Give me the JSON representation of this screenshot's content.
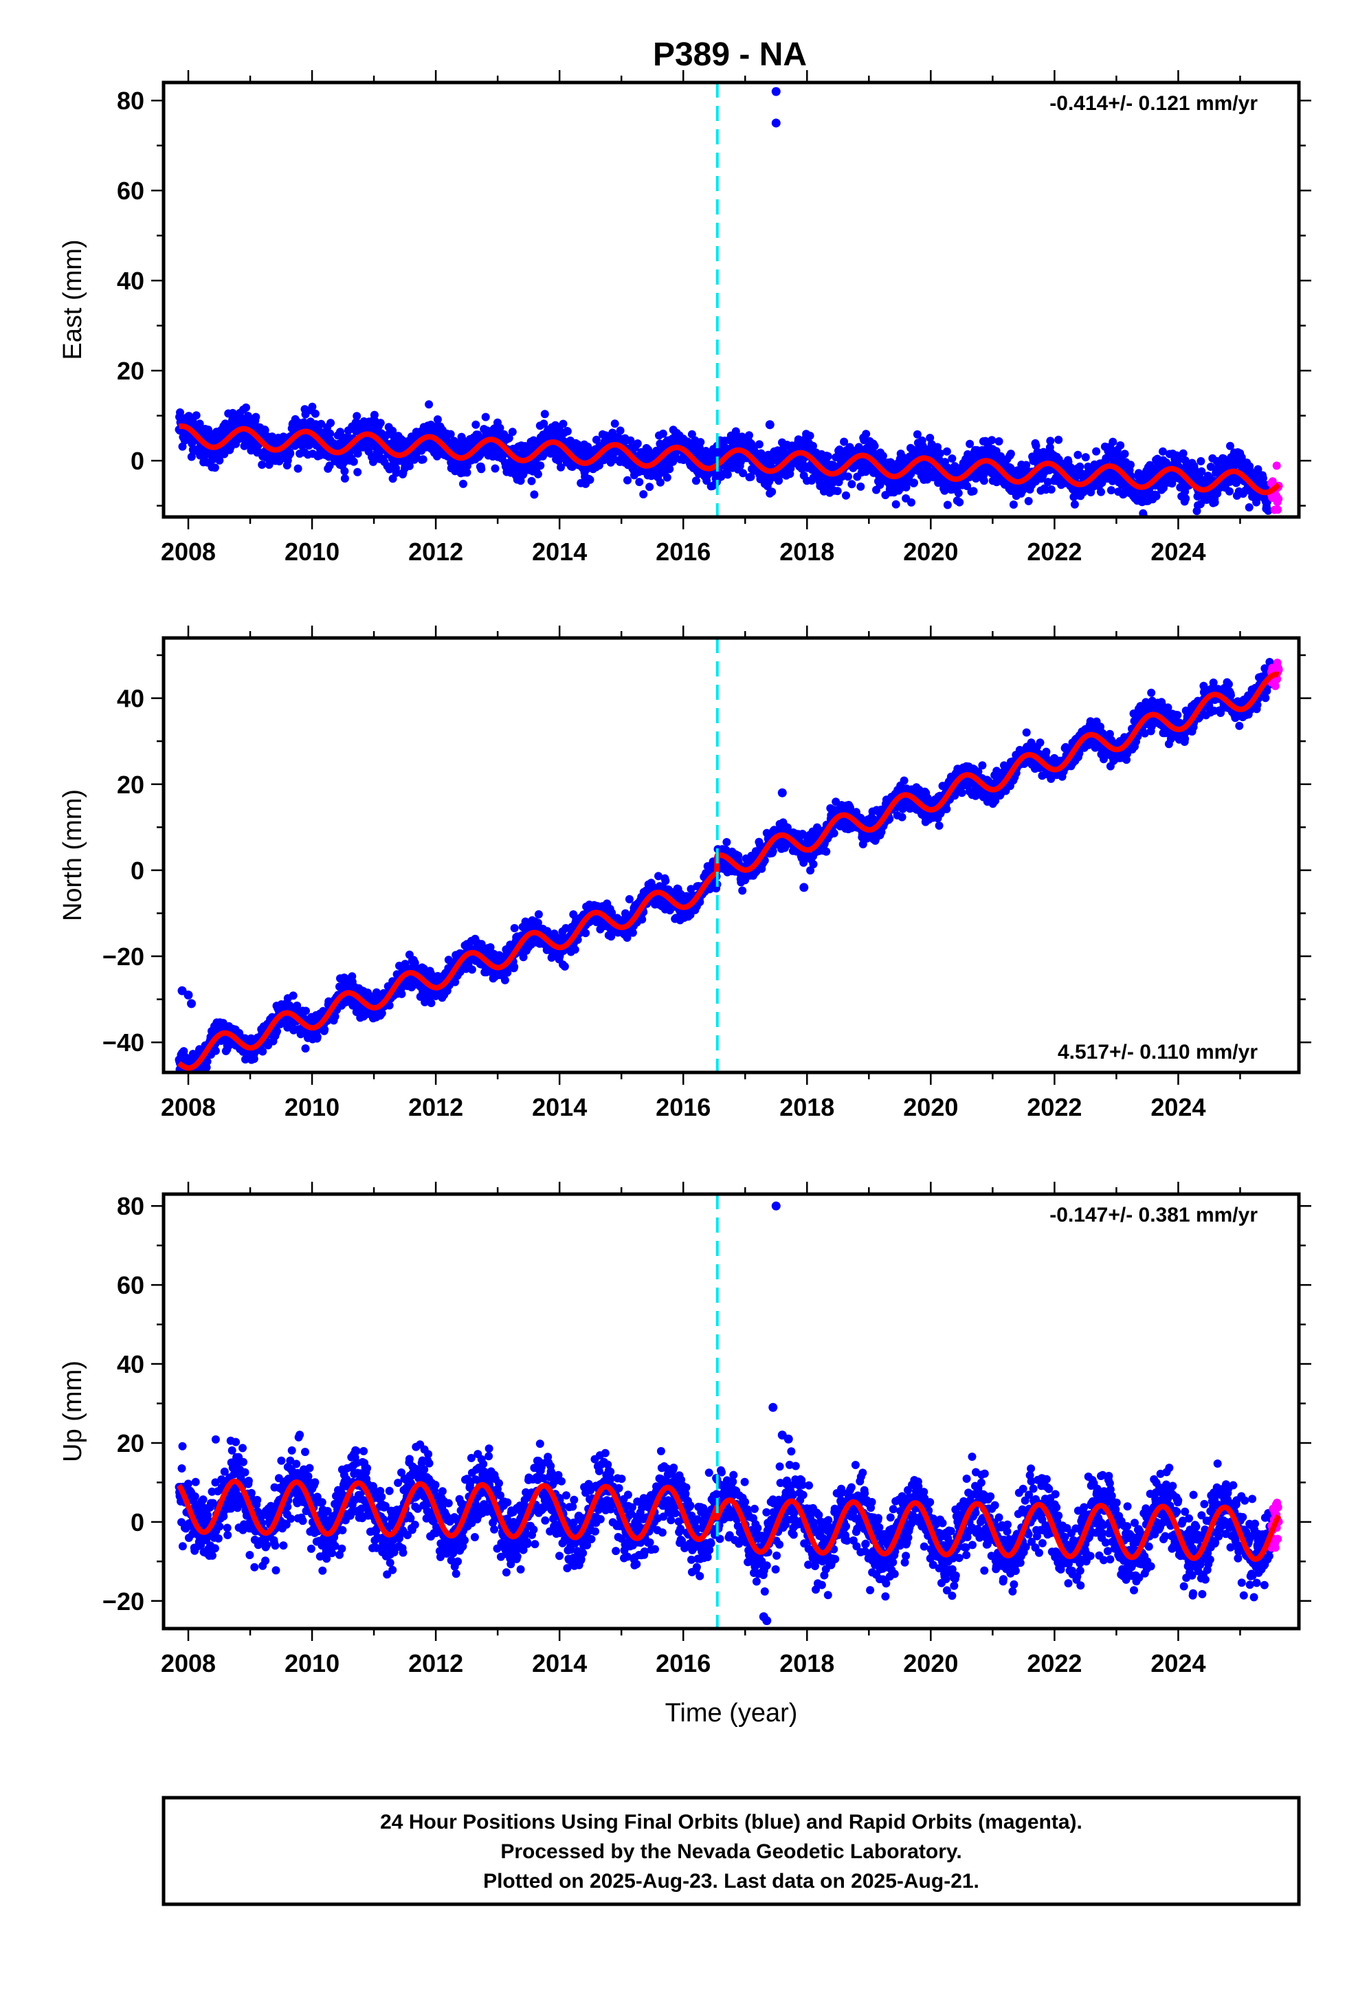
{
  "title": "P389 - NA",
  "caption": {
    "line1": "24 Hour Positions Using Final Orbits (blue) and Rapid Orbits (magenta).",
    "line2": "Processed by the Nevada Geodetic Laboratory.",
    "line3": "Plotted on 2025-Aug-23. Last data on 2025-Aug-21."
  },
  "colors": {
    "final_orbits": "#0000ff",
    "rapid_orbits": "#ff00ff",
    "model_fit": "#ff0000",
    "equipment_change": "#00e5ee"
  },
  "chart_data": [
    {
      "type": "scatter",
      "component": "east",
      "ylabel": "East (mm)",
      "xlabel": "",
      "xlim": [
        2007.6,
        2025.95
      ],
      "ylim": [
        -12.5,
        84
      ],
      "xticks": [
        "2008",
        "2010",
        "2012",
        "2014",
        "2016",
        "2018",
        "2020",
        "2022",
        "2024"
      ],
      "yticks": [
        "0",
        "20",
        "40",
        "60",
        "80"
      ],
      "rate_text": "-0.414+/- 0.121 mm/yr",
      "rate_position": "top-right",
      "start_year": 2007.85,
      "end_year": 2025.63,
      "rapid_start_year": 2025.5,
      "offset_epochs": [
        2016.55
      ],
      "model": {
        "start_value": 5.5,
        "end_value": -5.0,
        "annual_amplitude": 2.2,
        "annual_peak_year_fraction": 0.9,
        "step_at_offset": 0
      },
      "scatter_spread": 2.2,
      "outliers": [
        {
          "x": 2017.5,
          "y": 82
        },
        {
          "x": 2017.5,
          "y": 75
        },
        {
          "x": 2017.4,
          "y": 8
        }
      ]
    },
    {
      "type": "scatter",
      "component": "north",
      "ylabel": "North (mm)",
      "xlabel": "",
      "xlim": [
        2007.6,
        2025.95
      ],
      "ylim": [
        -47,
        54
      ],
      "xticks": [
        "2008",
        "2010",
        "2012",
        "2014",
        "2016",
        "2018",
        "2020",
        "2022",
        "2024"
      ],
      "yticks": [
        "-40",
        "-20",
        "0",
        "20",
        "40"
      ],
      "rate_text": "4.517+/- 0.110 mm/yr",
      "rate_position": "bottom-right",
      "start_year": 2007.85,
      "end_year": 2025.63,
      "rapid_start_year": 2025.5,
      "offset_epochs": [
        2016.55
      ],
      "model": {
        "start_value": -44.0,
        "end_value": 43.0,
        "annual_amplitude": 2.8,
        "annual_peak_year_fraction": 0.55,
        "step_at_offset": 4
      },
      "scatter_spread": 1.6,
      "outliers": [
        {
          "x": 2007.9,
          "y": -28
        },
        {
          "x": 2008.0,
          "y": -29
        },
        {
          "x": 2008.05,
          "y": -31
        },
        {
          "x": 2017.6,
          "y": 18
        },
        {
          "x": 2017.95,
          "y": -4
        }
      ]
    },
    {
      "type": "scatter",
      "component": "up",
      "ylabel": "Up (mm)",
      "xlabel": "Time (year)",
      "xlim": [
        2007.6,
        2025.95
      ],
      "ylim": [
        -27,
        83
      ],
      "xticks": [
        "2008",
        "2010",
        "2012",
        "2014",
        "2016",
        "2018",
        "2020",
        "2022",
        "2024"
      ],
      "yticks": [
        "-20",
        "0",
        "20",
        "40",
        "60",
        "80"
      ],
      "rate_text": "-0.147+/- 0.381 mm/yr",
      "rate_position": "top-right",
      "start_year": 2007.85,
      "end_year": 2025.63,
      "rapid_start_year": 2025.5,
      "offset_epochs": [
        2016.55
      ],
      "model": {
        "start_value": 4.0,
        "end_value": -3.0,
        "annual_amplitude": 6.5,
        "annual_peak_year_fraction": 0.75,
        "step_at_offset": -3
      },
      "scatter_spread": 4.5,
      "outliers": [
        {
          "x": 2017.5,
          "y": 80
        },
        {
          "x": 2017.45,
          "y": 29
        },
        {
          "x": 2017.6,
          "y": 22
        },
        {
          "x": 2017.7,
          "y": 21
        },
        {
          "x": 2017.3,
          "y": -24
        },
        {
          "x": 2017.35,
          "y": -25
        }
      ]
    }
  ]
}
